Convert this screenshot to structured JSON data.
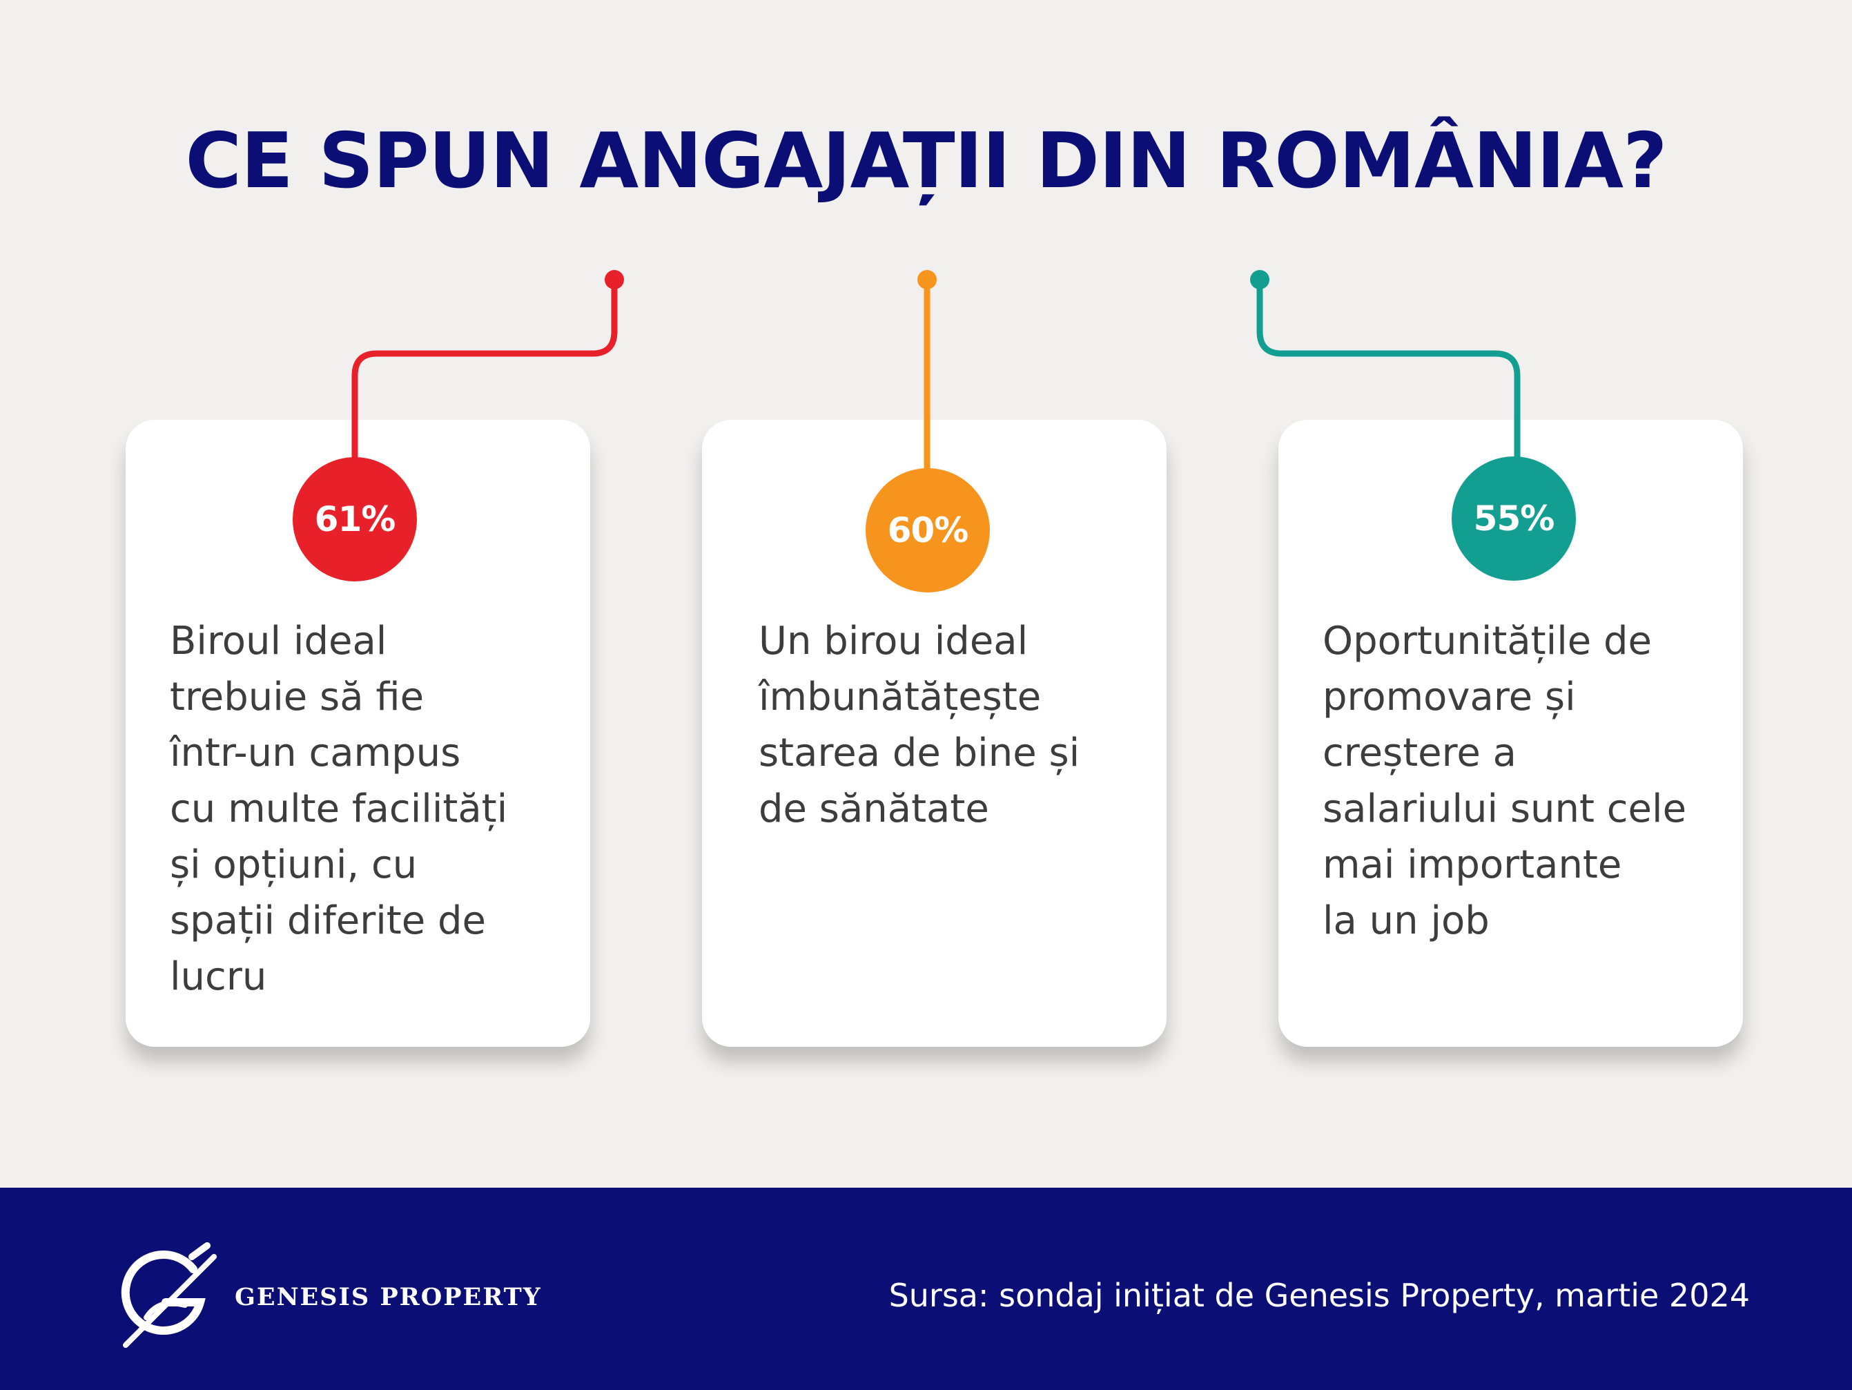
{
  "header": {
    "title": "CE SPUN ANGAJAȚII DIN ROMÂNIA?"
  },
  "cards": [
    {
      "percent": "61%",
      "color": "#e8202a",
      "text": "Biroul ideal\ntrebuie să fie\nîntr-un campus\ncu multe facilități\nși opțiuni, cu\nspații diferite de\nlucru"
    },
    {
      "percent": "60%",
      "color": "#f7941d",
      "text": "Un birou ideal\nîmbunătățește\nstarea de bine și\nde sănătate"
    },
    {
      "percent": "55%",
      "color": "#139e92",
      "text": "Oportunitățile de\npromovare și\ncreștere a\nsalariului sunt cele\nmai importante\nla un job"
    }
  ],
  "footer": {
    "brand": "GENESIS PROPERTY",
    "logo_icon": "genesis-logo-icon",
    "source": "Sursa: sondaj inițiat de Genesis Property, martie 2024",
    "background": "#0b0e75"
  }
}
